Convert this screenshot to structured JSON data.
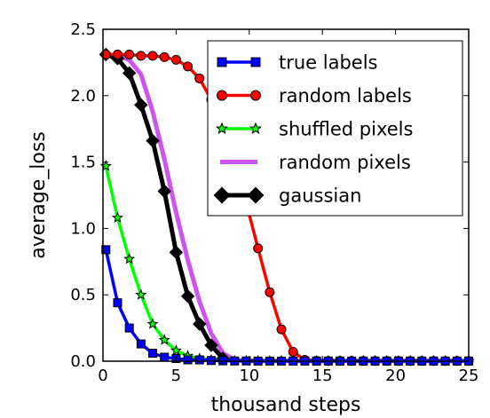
{
  "chart_data": {
    "type": "line",
    "xlabel": "thousand steps",
    "ylabel": "average_loss",
    "xlim": [
      0,
      25
    ],
    "ylim": [
      0,
      2.5
    ],
    "xticks": [
      0,
      5,
      10,
      15,
      20,
      25
    ],
    "yticks": [
      0.0,
      0.5,
      1.0,
      1.5,
      2.0,
      2.5
    ],
    "xtick_labels": [
      "0",
      "5",
      "10",
      "15",
      "20",
      "25"
    ],
    "ytick_labels": [
      "0.0",
      "0.5",
      "1.0",
      "1.5",
      "2.0",
      "2.5"
    ],
    "grid": false,
    "legend_position": "top-right",
    "series": [
      {
        "name": "true labels",
        "color": "#0000ff",
        "marker": "square",
        "x": [
          0.2,
          1.0,
          1.8,
          2.6,
          3.4,
          4.2,
          5.0,
          5.8,
          6.6,
          7.4,
          8.2,
          9.0,
          9.8,
          10.6,
          11.4,
          12.2,
          13.0,
          13.8,
          14.6,
          15.4,
          16.2,
          17.0,
          17.8,
          18.6,
          19.4,
          20.2,
          21.0,
          21.8,
          22.6,
          23.4,
          24.2,
          25.0
        ],
        "y": [
          0.84,
          0.44,
          0.25,
          0.13,
          0.06,
          0.03,
          0.02,
          0.01,
          0.01,
          0.005,
          0.003,
          0.002,
          0.002,
          0.001,
          0.001,
          0.001,
          0.001,
          0.001,
          0.001,
          0.001,
          0.001,
          0.001,
          0.001,
          0.001,
          0.001,
          0.001,
          0.001,
          0.001,
          0.001,
          0.001,
          0.001,
          0.001
        ]
      },
      {
        "name": "random labels",
        "color": "#ff0000",
        "marker": "circle",
        "x": [
          0.2,
          1.0,
          1.8,
          2.6,
          3.4,
          4.2,
          5.0,
          5.8,
          6.6,
          7.4,
          8.2,
          9.0,
          9.8,
          10.6,
          11.4,
          12.2,
          13.0,
          13.8,
          14.6,
          15.4,
          16.2,
          17.0,
          17.8,
          18.6,
          19.4,
          20.2,
          21.0,
          21.8,
          22.6,
          23.4,
          24.2,
          25.0
        ],
        "y": [
          2.31,
          2.31,
          2.31,
          2.3,
          2.3,
          2.29,
          2.27,
          2.22,
          2.13,
          1.97,
          1.77,
          1.51,
          1.19,
          0.85,
          0.52,
          0.24,
          0.07,
          0.01,
          0.003,
          0.002,
          0.002,
          0.002,
          0.002,
          0.002,
          0.002,
          0.002,
          0.002,
          0.002,
          0.002,
          0.002,
          0.002,
          0.002
        ]
      },
      {
        "name": "shuffled pixels",
        "color": "#00ff00",
        "marker": "star",
        "x": [
          0.2,
          1.0,
          1.8,
          2.6,
          3.4,
          4.2,
          5.0,
          5.8,
          6.6,
          7.4,
          8.2,
          9.0,
          9.8,
          10.6,
          11.4,
          12.2,
          13.0,
          13.8,
          14.6,
          15.4,
          16.2,
          17.0,
          17.8,
          18.6,
          19.4,
          20.2,
          21.0,
          21.8,
          22.6,
          23.4,
          24.2,
          25.0
        ],
        "y": [
          1.47,
          1.08,
          0.77,
          0.5,
          0.28,
          0.16,
          0.08,
          0.04,
          0.02,
          0.01,
          0.005,
          0.003,
          0.002,
          0.002,
          0.002,
          0.002,
          0.002,
          0.002,
          0.002,
          0.002,
          0.002,
          0.002,
          0.002,
          0.002,
          0.002,
          0.002,
          0.002,
          0.002,
          0.002,
          0.002,
          0.002,
          0.002
        ]
      },
      {
        "name": "random pixels",
        "color": "#cc55ee",
        "marker": "none",
        "x": [
          0.2,
          1.0,
          1.8,
          2.6,
          3.4,
          4.2,
          5.0,
          5.8,
          6.6,
          7.4,
          8.2,
          9.0,
          9.8,
          25.0
        ],
        "y": [
          2.31,
          2.3,
          2.27,
          2.16,
          1.88,
          1.52,
          1.12,
          0.76,
          0.45,
          0.21,
          0.06,
          0.01,
          0.002,
          0.002
        ]
      },
      {
        "name": "gaussian",
        "color": "#000000",
        "marker": "diamond",
        "x": [
          0.2,
          1.0,
          1.8,
          2.6,
          3.4,
          4.2,
          5.0,
          5.8,
          6.6,
          7.4,
          8.2
        ],
        "y": [
          2.31,
          2.28,
          2.17,
          1.93,
          1.66,
          1.28,
          0.82,
          0.49,
          0.28,
          0.12,
          0.02
        ]
      }
    ]
  }
}
